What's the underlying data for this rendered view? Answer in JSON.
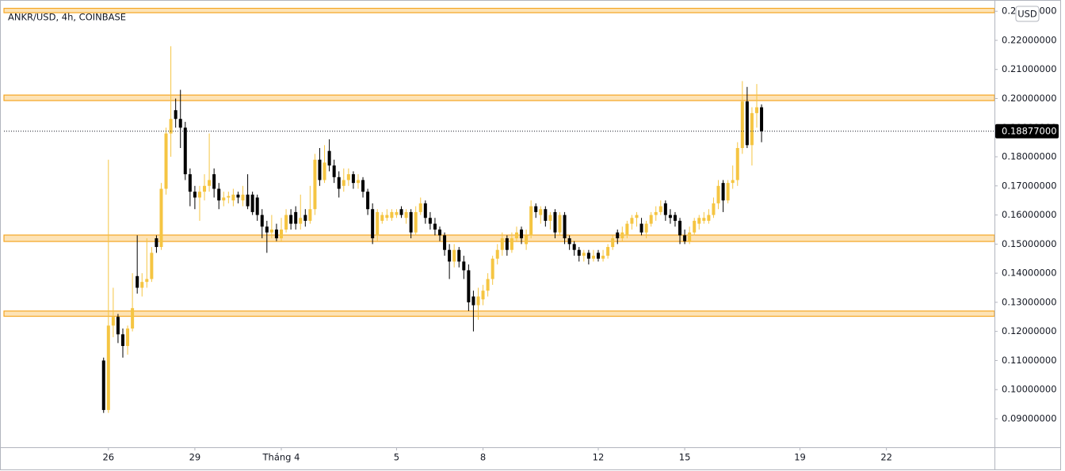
{
  "chart_data": {
    "type": "candlestick",
    "title": "ANKR/USD, 4h, COINBASE",
    "currency": "USD",
    "up_color": "#f5c542",
    "down_color": "#000000",
    "zone_fill": "#fde3b6",
    "zone_stroke": "#f5a623",
    "xlim": [
      -87,
      738
    ],
    "ylim": [
      0.0802,
      0.2325
    ],
    "xticks": [
      {
        "value": 0,
        "label": "26"
      },
      {
        "value": 72,
        "label": "29"
      },
      {
        "value": 144,
        "label": "Tháng 4"
      },
      {
        "value": 240,
        "label": "5"
      },
      {
        "value": 312,
        "label": "8"
      },
      {
        "value": 408,
        "label": "12"
      },
      {
        "value": 480,
        "label": "15"
      },
      {
        "value": 576,
        "label": "19"
      },
      {
        "value": 648,
        "label": "22"
      }
    ],
    "yticks": [
      {
        "value": 0.09,
        "label": "0.09000000"
      },
      {
        "value": 0.1,
        "label": "0.10000000"
      },
      {
        "value": 0.11,
        "label": "0.11000000"
      },
      {
        "value": 0.12,
        "label": "0.12000000"
      },
      {
        "value": 0.13,
        "label": "0.13000000"
      },
      {
        "value": 0.14,
        "label": "0.14000000"
      },
      {
        "value": 0.15,
        "label": "0.15000000"
      },
      {
        "value": 0.16,
        "label": "0.16000000"
      },
      {
        "value": 0.17,
        "label": "0.17000000"
      },
      {
        "value": 0.18,
        "label": "0.18000000"
      },
      {
        "value": 0.19,
        "label": "0.19000000"
      },
      {
        "value": 0.2,
        "label": "0.20000000"
      },
      {
        "value": 0.21,
        "label": "0.21000000"
      },
      {
        "value": 0.22,
        "label": "0.22000000"
      },
      {
        "value": 0.23,
        "label": "0.23000000"
      }
    ],
    "last_price": {
      "value": 0.18877,
      "label": "0.18877000"
    },
    "zones": [
      [
        0.2295,
        0.231
      ],
      [
        0.1993,
        0.2012
      ],
      [
        0.1509,
        0.1531
      ],
      [
        0.1252,
        0.127
      ]
    ],
    "x": [
      -4,
      0,
      4,
      8,
      12,
      16,
      20,
      24,
      28,
      32,
      36,
      40,
      44,
      48,
      52,
      56,
      60,
      64,
      68,
      72,
      76,
      80,
      84,
      88,
      92,
      96,
      100,
      104,
      108,
      112,
      116,
      120,
      124,
      128,
      132,
      136,
      140,
      144,
      148,
      152,
      156,
      160,
      164,
      168,
      172,
      176,
      180,
      184,
      188,
      192,
      196,
      200,
      204,
      208,
      212,
      216,
      220,
      224,
      228,
      232,
      236,
      240,
      244,
      248,
      252,
      256,
      260,
      264,
      268,
      272,
      276,
      280,
      284,
      288,
      292,
      296,
      300,
      304,
      308,
      312,
      316,
      320,
      324,
      328,
      332,
      336,
      340,
      344,
      348,
      352,
      356,
      360,
      364,
      368,
      372,
      376,
      380,
      384,
      388,
      392,
      396,
      400,
      404,
      408,
      412,
      416,
      420,
      424,
      428,
      432,
      436,
      440,
      444,
      448,
      452,
      456,
      460,
      464,
      468,
      472,
      476,
      480,
      484,
      488,
      492,
      496,
      500,
      504,
      508,
      512,
      516,
      520,
      524,
      528,
      532,
      536,
      540,
      544
    ],
    "ohlc": [
      [
        0.11,
        0.111,
        0.092,
        0.093
      ],
      [
        0.093,
        0.179,
        0.092,
        0.122
      ],
      [
        0.122,
        0.135,
        0.118,
        0.125
      ],
      [
        0.125,
        0.126,
        0.116,
        0.119
      ],
      [
        0.119,
        0.121,
        0.111,
        0.115
      ],
      [
        0.115,
        0.122,
        0.112,
        0.121
      ],
      [
        0.121,
        0.14,
        0.12,
        0.128
      ],
      [
        0.139,
        0.153,
        0.133,
        0.135
      ],
      [
        0.135,
        0.14,
        0.132,
        0.137
      ],
      [
        0.137,
        0.152,
        0.135,
        0.138
      ],
      [
        0.138,
        0.149,
        0.137,
        0.147
      ],
      [
        0.152,
        0.153,
        0.147,
        0.149
      ],
      [
        0.149,
        0.171,
        0.148,
        0.169
      ],
      [
        0.169,
        0.19,
        0.167,
        0.188
      ],
      [
        0.188,
        0.218,
        0.18,
        0.193
      ],
      [
        0.196,
        0.2,
        0.19,
        0.193
      ],
      [
        0.193,
        0.203,
        0.183,
        0.19
      ],
      [
        0.19,
        0.192,
        0.172,
        0.174
      ],
      [
        0.174,
        0.176,
        0.163,
        0.168
      ],
      [
        0.168,
        0.17,
        0.162,
        0.166
      ],
      [
        0.166,
        0.17,
        0.158,
        0.168
      ],
      [
        0.168,
        0.174,
        0.165,
        0.17
      ],
      [
        0.17,
        0.188,
        0.168,
        0.172
      ],
      [
        0.174,
        0.176,
        0.166,
        0.169
      ],
      [
        0.169,
        0.171,
        0.162,
        0.165
      ],
      [
        0.165,
        0.168,
        0.163,
        0.166
      ],
      [
        0.166,
        0.168,
        0.164,
        0.1665
      ],
      [
        0.165,
        0.169,
        0.163,
        0.167
      ],
      [
        0.167,
        0.168,
        0.164,
        0.166
      ],
      [
        0.165,
        0.17,
        0.163,
        0.167
      ],
      [
        0.167,
        0.174,
        0.162,
        0.163
      ],
      [
        0.167,
        0.168,
        0.16,
        0.161
      ],
      [
        0.166,
        0.167,
        0.158,
        0.16
      ],
      [
        0.16,
        0.162,
        0.152,
        0.156
      ],
      [
        0.156,
        0.158,
        0.147,
        0.154
      ],
      [
        0.154,
        0.16,
        0.152,
        0.155
      ],
      [
        0.155,
        0.157,
        0.151,
        0.152
      ],
      [
        0.152,
        0.159,
        0.151,
        0.155
      ],
      [
        0.155,
        0.162,
        0.154,
        0.16
      ],
      [
        0.16,
        0.162,
        0.155,
        0.157
      ],
      [
        0.161,
        0.163,
        0.155,
        0.157
      ],
      [
        0.157,
        0.167,
        0.155,
        0.159
      ],
      [
        0.16,
        0.162,
        0.156,
        0.158
      ],
      [
        0.158,
        0.17,
        0.157,
        0.162
      ],
      [
        0.162,
        0.181,
        0.16,
        0.179
      ],
      [
        0.179,
        0.183,
        0.17,
        0.172
      ],
      [
        0.172,
        0.184,
        0.171,
        0.178
      ],
      [
        0.182,
        0.186,
        0.175,
        0.177
      ],
      [
        0.177,
        0.179,
        0.171,
        0.173
      ],
      [
        0.173,
        0.175,
        0.166,
        0.169
      ],
      [
        0.17,
        0.176,
        0.168,
        0.172
      ],
      [
        0.172,
        0.176,
        0.17,
        0.174
      ],
      [
        0.174,
        0.175,
        0.169,
        0.171
      ],
      [
        0.171,
        0.174,
        0.169,
        0.172
      ],
      [
        0.172,
        0.173,
        0.166,
        0.168
      ],
      [
        0.168,
        0.169,
        0.16,
        0.162
      ],
      [
        0.162,
        0.164,
        0.15,
        0.152
      ],
      [
        0.153,
        0.162,
        0.151,
        0.161
      ],
      [
        0.158,
        0.161,
        0.157,
        0.16
      ],
      [
        0.159,
        0.162,
        0.158,
        0.16
      ],
      [
        0.159,
        0.162,
        0.158,
        0.161
      ],
      [
        0.16,
        0.162,
        0.159,
        0.161
      ],
      [
        0.162,
        0.163,
        0.159,
        0.16
      ],
      [
        0.159,
        0.162,
        0.157,
        0.161
      ],
      [
        0.161,
        0.162,
        0.152,
        0.154
      ],
      [
        0.154,
        0.163,
        0.153,
        0.161
      ],
      [
        0.161,
        0.166,
        0.16,
        0.164
      ],
      [
        0.164,
        0.165,
        0.157,
        0.159
      ],
      [
        0.159,
        0.161,
        0.155,
        0.157
      ],
      [
        0.157,
        0.159,
        0.153,
        0.155
      ],
      [
        0.155,
        0.156,
        0.151,
        0.153
      ],
      [
        0.153,
        0.154,
        0.146,
        0.148
      ],
      [
        0.148,
        0.15,
        0.138,
        0.144
      ],
      [
        0.144,
        0.15,
        0.142,
        0.148
      ],
      [
        0.148,
        0.149,
        0.142,
        0.144
      ],
      [
        0.144,
        0.146,
        0.138,
        0.141
      ],
      [
        0.141,
        0.143,
        0.127,
        0.13
      ],
      [
        0.132,
        0.134,
        0.12,
        0.129
      ],
      [
        0.129,
        0.135,
        0.124,
        0.132
      ],
      [
        0.131,
        0.136,
        0.129,
        0.134
      ],
      [
        0.134,
        0.14,
        0.132,
        0.138
      ],
      [
        0.138,
        0.146,
        0.136,
        0.145
      ],
      [
        0.145,
        0.15,
        0.143,
        0.148
      ],
      [
        0.148,
        0.154,
        0.146,
        0.152
      ],
      [
        0.152,
        0.153,
        0.146,
        0.148
      ],
      [
        0.148,
        0.154,
        0.147,
        0.152
      ],
      [
        0.152,
        0.156,
        0.151,
        0.154
      ],
      [
        0.155,
        0.156,
        0.15,
        0.152
      ],
      [
        0.15,
        0.155,
        0.148,
        0.153
      ],
      [
        0.153,
        0.165,
        0.152,
        0.163
      ],
      [
        0.163,
        0.164,
        0.159,
        0.161
      ],
      [
        0.16,
        0.163,
        0.157,
        0.162
      ],
      [
        0.162,
        0.163,
        0.156,
        0.158
      ],
      [
        0.158,
        0.161,
        0.155,
        0.16
      ],
      [
        0.161,
        0.162,
        0.152,
        0.154
      ],
      [
        0.154,
        0.161,
        0.153,
        0.16
      ],
      [
        0.16,
        0.161,
        0.15,
        0.152
      ],
      [
        0.152,
        0.153,
        0.148,
        0.15
      ],
      [
        0.15,
        0.151,
        0.146,
        0.148
      ],
      [
        0.148,
        0.149,
        0.144,
        0.146
      ],
      [
        0.146,
        0.148,
        0.144,
        0.147
      ],
      [
        0.147,
        0.148,
        0.143,
        0.145
      ],
      [
        0.145,
        0.148,
        0.144,
        0.146
      ],
      [
        0.147,
        0.148,
        0.144,
        0.145
      ],
      [
        0.145,
        0.148,
        0.144,
        0.146
      ],
      [
        0.146,
        0.15,
        0.145,
        0.149
      ],
      [
        0.149,
        0.153,
        0.148,
        0.152
      ],
      [
        0.154,
        0.155,
        0.15,
        0.152
      ],
      [
        0.152,
        0.156,
        0.151,
        0.154
      ],
      [
        0.153,
        0.158,
        0.152,
        0.157
      ],
      [
        0.157,
        0.16,
        0.155,
        0.159
      ],
      [
        0.159,
        0.161,
        0.156,
        0.16
      ],
      [
        0.157,
        0.159,
        0.153,
        0.154
      ],
      [
        0.154,
        0.158,
        0.152,
        0.157
      ],
      [
        0.157,
        0.161,
        0.156,
        0.16
      ],
      [
        0.16,
        0.163,
        0.158,
        0.161
      ],
      [
        0.161,
        0.165,
        0.16,
        0.163
      ],
      [
        0.164,
        0.165,
        0.158,
        0.16
      ],
      [
        0.16,
        0.162,
        0.157,
        0.159
      ],
      [
        0.16,
        0.161,
        0.156,
        0.158
      ],
      [
        0.158,
        0.159,
        0.15,
        0.153
      ],
      [
        0.153,
        0.155,
        0.15,
        0.151
      ],
      [
        0.151,
        0.156,
        0.15,
        0.154
      ],
      [
        0.154,
        0.159,
        0.153,
        0.158
      ],
      [
        0.157,
        0.16,
        0.155,
        0.159
      ],
      [
        0.158,
        0.161,
        0.157,
        0.159
      ],
      [
        0.158,
        0.162,
        0.157,
        0.16
      ],
      [
        0.16,
        0.166,
        0.159,
        0.164
      ],
      [
        0.164,
        0.172,
        0.162,
        0.17
      ],
      [
        0.171,
        0.172,
        0.161,
        0.165
      ],
      [
        0.165,
        0.172,
        0.164,
        0.171
      ],
      [
        0.171,
        0.177,
        0.169,
        0.172
      ],
      [
        0.172,
        0.185,
        0.17,
        0.183
      ],
      [
        0.183,
        0.206,
        0.181,
        0.199
      ],
      [
        0.199,
        0.204,
        0.183,
        0.184
      ],
      [
        0.184,
        0.197,
        0.177,
        0.195
      ],
      [
        0.195,
        0.205,
        0.19,
        0.197
      ],
      [
        0.197,
        0.198,
        0.185,
        0.18877
      ]
    ]
  }
}
